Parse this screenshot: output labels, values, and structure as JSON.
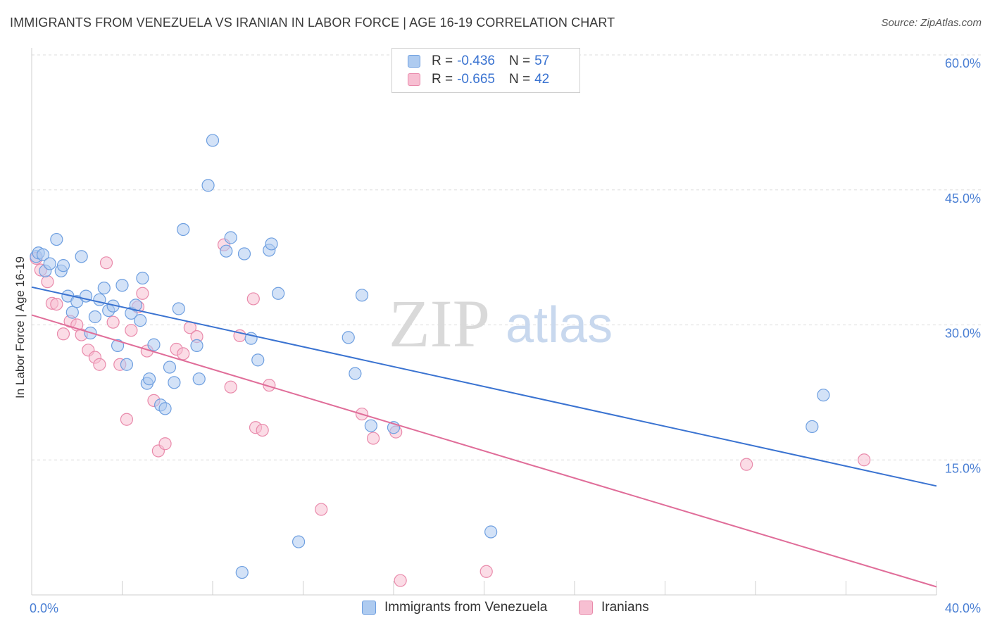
{
  "title": "IMMIGRANTS FROM VENEZUELA VS IRANIAN IN LABOR FORCE | AGE 16-19 CORRELATION CHART",
  "source": "Source: ZipAtlas.com",
  "watermark": {
    "zip": "ZIP",
    "atlas": "atlas"
  },
  "legend": {
    "series": [
      {
        "r_label": "R =",
        "r_value": "-0.436",
        "n_label": "N =",
        "n_value": "57"
      },
      {
        "r_label": "R =",
        "r_value": "-0.665",
        "n_label": "N =",
        "n_value": "42"
      }
    ]
  },
  "bottom_legend": [
    "Immigrants from Venezuela",
    "Iranians"
  ],
  "colors": {
    "blue_fill": "#aecbf0",
    "blue_stroke": "#6e9fe0",
    "blue_line": "#3a73d1",
    "pink_fill": "#f7bfd2",
    "pink_stroke": "#e98aab",
    "pink_line": "#e06d99",
    "tick_text": "#4a7fd4",
    "grid": "#dcdcdc"
  },
  "chart_data": {
    "type": "scatter",
    "title": "IMMIGRANTS FROM VENEZUELA VS IRANIAN IN LABOR FORCE | AGE 16-19 CORRELATION CHART",
    "xlabel": "",
    "ylabel": "In Labor Force | Age 16-19",
    "xlim": [
      0,
      40
    ],
    "ylim": [
      0,
      60
    ],
    "x_tick_labels": [
      "0.0%",
      "40.0%"
    ],
    "y_ticks": [
      15,
      30,
      45,
      60
    ],
    "y_tick_labels": [
      "15.0%",
      "30.0%",
      "45.0%",
      "60.0%"
    ],
    "grid": true,
    "legend_position": "top-center",
    "series": [
      {
        "name": "Immigrants from Venezuela",
        "r": -0.436,
        "n": 57,
        "trend": [
          [
            0,
            34.2
          ],
          [
            40,
            12.1
          ]
        ],
        "points": [
          [
            0.2,
            37.6
          ],
          [
            0.3,
            38.0
          ],
          [
            0.5,
            37.8
          ],
          [
            0.6,
            36.0
          ],
          [
            0.8,
            36.8
          ],
          [
            1.1,
            39.5
          ],
          [
            1.3,
            36.0
          ],
          [
            1.4,
            36.6
          ],
          [
            1.6,
            33.2
          ],
          [
            1.8,
            31.4
          ],
          [
            2.0,
            32.6
          ],
          [
            2.2,
            37.6
          ],
          [
            2.4,
            33.2
          ],
          [
            2.6,
            29.1
          ],
          [
            2.8,
            30.9
          ],
          [
            3.0,
            32.8
          ],
          [
            3.2,
            34.1
          ],
          [
            3.4,
            31.6
          ],
          [
            3.6,
            32.1
          ],
          [
            3.8,
            27.7
          ],
          [
            4.0,
            34.4
          ],
          [
            4.2,
            25.6
          ],
          [
            4.4,
            31.3
          ],
          [
            4.6,
            32.2
          ],
          [
            4.8,
            30.5
          ],
          [
            4.9,
            35.2
          ],
          [
            5.1,
            23.5
          ],
          [
            5.2,
            24.0
          ],
          [
            5.4,
            27.8
          ],
          [
            5.7,
            21.1
          ],
          [
            5.9,
            20.7
          ],
          [
            6.1,
            25.3
          ],
          [
            6.3,
            23.6
          ],
          [
            6.5,
            31.8
          ],
          [
            6.7,
            40.6
          ],
          [
            7.3,
            27.7
          ],
          [
            7.4,
            24.0
          ],
          [
            7.8,
            45.5
          ],
          [
            8.0,
            50.5
          ],
          [
            8.6,
            38.2
          ],
          [
            8.8,
            39.7
          ],
          [
            9.3,
            2.5
          ],
          [
            9.4,
            37.9
          ],
          [
            9.7,
            28.5
          ],
          [
            10.0,
            26.1
          ],
          [
            10.5,
            38.3
          ],
          [
            10.6,
            39.0
          ],
          [
            10.9,
            33.5
          ],
          [
            11.8,
            5.9
          ],
          [
            14.0,
            28.6
          ],
          [
            14.3,
            24.6
          ],
          [
            14.6,
            33.3
          ],
          [
            15.0,
            18.8
          ],
          [
            16.0,
            18.6
          ],
          [
            20.3,
            7.0
          ],
          [
            34.5,
            18.7
          ],
          [
            35.0,
            22.2
          ]
        ]
      },
      {
        "name": "Iranians",
        "r": -0.665,
        "n": 42,
        "trend": [
          [
            0,
            31.1
          ],
          [
            40,
            0.9
          ]
        ],
        "points": [
          [
            0.2,
            37.4
          ],
          [
            0.4,
            36.1
          ],
          [
            0.7,
            34.8
          ],
          [
            0.9,
            32.4
          ],
          [
            1.1,
            32.3
          ],
          [
            1.4,
            29.0
          ],
          [
            1.7,
            30.4
          ],
          [
            2.0,
            30.0
          ],
          [
            2.2,
            28.9
          ],
          [
            2.5,
            27.2
          ],
          [
            2.8,
            26.4
          ],
          [
            3.0,
            25.6
          ],
          [
            3.3,
            36.9
          ],
          [
            3.6,
            30.3
          ],
          [
            3.9,
            25.6
          ],
          [
            4.2,
            19.5
          ],
          [
            4.4,
            29.4
          ],
          [
            4.7,
            32.0
          ],
          [
            4.9,
            33.5
          ],
          [
            5.1,
            27.1
          ],
          [
            5.4,
            21.6
          ],
          [
            5.6,
            16.0
          ],
          [
            5.9,
            16.8
          ],
          [
            6.4,
            27.3
          ],
          [
            6.7,
            26.8
          ],
          [
            7.0,
            29.7
          ],
          [
            7.3,
            28.7
          ],
          [
            8.5,
            38.9
          ],
          [
            8.8,
            23.1
          ],
          [
            9.2,
            28.8
          ],
          [
            9.8,
            32.9
          ],
          [
            9.9,
            18.6
          ],
          [
            10.2,
            18.3
          ],
          [
            10.5,
            23.3
          ],
          [
            12.8,
            9.5
          ],
          [
            14.6,
            20.1
          ],
          [
            15.1,
            17.4
          ],
          [
            16.1,
            18.1
          ],
          [
            16.3,
            1.6
          ],
          [
            20.1,
            2.6
          ],
          [
            31.6,
            14.5
          ],
          [
            36.8,
            15.0
          ]
        ]
      }
    ]
  }
}
